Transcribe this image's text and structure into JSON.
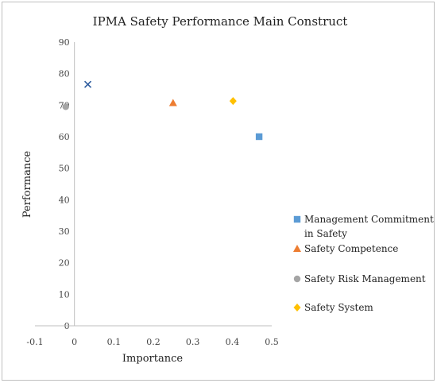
{
  "chart_data": {
    "type": "scatter",
    "title": "IPMA Safety Performance Main Construct",
    "xlabel": "Importance",
    "ylabel": "Performance",
    "xlim": [
      -0.1,
      0.5
    ],
    "ylim": [
      0,
      90
    ],
    "xticks": [
      "-0.1",
      "0",
      "0.1",
      "0.2",
      "0.3",
      "0.4",
      "0.5"
    ],
    "yticks": [
      "0",
      "10",
      "20",
      "30",
      "40",
      "50",
      "60",
      "70",
      "80",
      "90"
    ],
    "grid": false,
    "legend_position": "right",
    "series": [
      {
        "name": "Management Commitment in Safety",
        "name_lines": [
          "Management Commitment",
          "in Safety"
        ],
        "marker": "square",
        "color": "#5b9bd5",
        "x": 0.468,
        "y": 60.0
      },
      {
        "name": "Safety Competence",
        "name_lines": [
          "Safety Competence"
        ],
        "marker": "triangle",
        "color": "#ed7d31",
        "x": 0.25,
        "y": 70.7
      },
      {
        "name": "Safety Risk Management",
        "name_lines": [
          "Safety Risk Management"
        ],
        "marker": "circle",
        "color": "#a5a5a5",
        "x": -0.022,
        "y": 69.5
      },
      {
        "name": "Safety System",
        "name_lines": [
          "Safety System"
        ],
        "marker": "diamond",
        "color": "#ffc000",
        "x": 0.402,
        "y": 71.3
      }
    ],
    "extra_points": [
      {
        "marker": "x",
        "color": "#2e5c9e",
        "x": 0.034,
        "y": 76.6
      }
    ]
  }
}
